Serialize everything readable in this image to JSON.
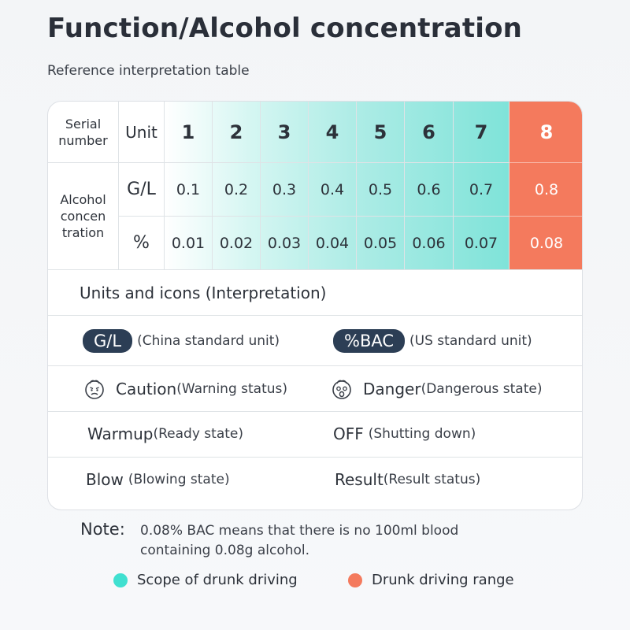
{
  "header": {
    "title": "Function/Alcohol concentration",
    "subtitle": "Reference interpretation table"
  },
  "table": {
    "serial_label": "Serial number",
    "unit_label": "Unit",
    "row_label": "Alcohol concen tration",
    "columns": [
      "1",
      "2",
      "3",
      "4",
      "5",
      "6",
      "7",
      "8"
    ],
    "rows": [
      {
        "unit": "G/L",
        "values": [
          "0.1",
          "0.2",
          "0.3",
          "0.4",
          "0.5",
          "0.6",
          "0.7",
          "0.8"
        ]
      },
      {
        "unit": "%",
        "values": [
          "0.01",
          "0.02",
          "0.03",
          "0.04",
          "0.05",
          "0.06",
          "0.07",
          "0.08"
        ]
      }
    ],
    "colors": {
      "teal_gradient": [
        "#ffffff",
        "#c9f3ee",
        "#a0e9e2",
        "#7fe3d9"
      ],
      "danger": "#f47a5d"
    }
  },
  "interpretation": {
    "title": "Units and icons (Interpretation)",
    "units": [
      {
        "badge": "G/L",
        "desc": "(China standard unit)"
      },
      {
        "badge": "%BAC",
        "desc": "(US standard unit)"
      }
    ],
    "icons": [
      {
        "icon": "worried-face-icon",
        "keyword": "Caution",
        "desc": "(Warning status)"
      },
      {
        "icon": "shocked-face-icon",
        "keyword": "Danger",
        "desc": "(Dangerous state)"
      }
    ],
    "states_a": [
      {
        "keyword": "Warmup",
        "desc": "(Ready state)"
      },
      {
        "keyword": "OFF",
        "desc": "(Shutting down)"
      }
    ],
    "states_b": [
      {
        "keyword": "Blow",
        "desc": "(Blowing state)"
      },
      {
        "keyword": "Result",
        "desc": "(Result status)"
      }
    ]
  },
  "note": {
    "label": "Note:",
    "text": "0.08% BAC means that there is no 100ml blood containing 0.08g alcohol."
  },
  "legend": [
    {
      "label": "Scope of drunk driving",
      "color": "#40e0d0"
    },
    {
      "label": "Drunk driving range",
      "color": "#f47a5d"
    }
  ]
}
